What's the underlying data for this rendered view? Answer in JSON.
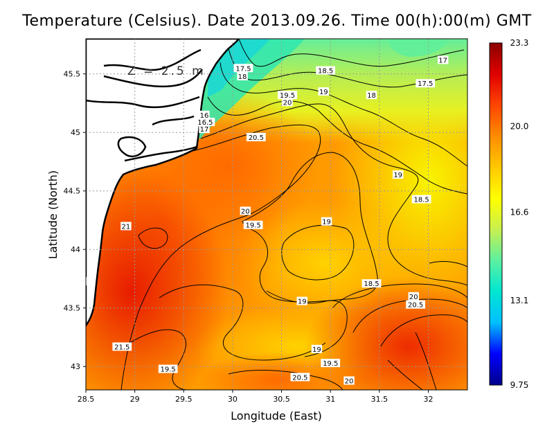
{
  "title": "Temperature (Celsius). Date 2013.09.26. Time 00(h):00(m) GMT",
  "depth_label": "Z = 2.5 m",
  "axes": {
    "xlabel": "Longitude (East)",
    "ylabel": "Latitude (North)",
    "xlim": [
      28.5,
      32.4
    ],
    "ylim": [
      42.8,
      45.8
    ],
    "xticks": [
      "28.5",
      "29",
      "29.5",
      "30",
      "30.5",
      "31",
      "31.5",
      "32"
    ],
    "yticks": [
      "43",
      "43.5",
      "44",
      "44.5",
      "45",
      "45.5"
    ],
    "grid": true
  },
  "colorbar": {
    "min": 9.75,
    "max": 23.3,
    "ticks": [
      "23.3",
      "20.0",
      "16.6",
      "13.1",
      "9.75"
    ],
    "colors": [
      "#00008b",
      "#0000ff",
      "#00bfff",
      "#00e6d2",
      "#5cf0a0",
      "#c8f050",
      "#ffff00",
      "#ffc800",
      "#ff8c00",
      "#ff4500",
      "#e00000",
      "#8b0000"
    ]
  },
  "contour_labels": [
    {
      "text": "17.5",
      "lon": 30.11,
      "lat": 45.55
    },
    {
      "text": "18",
      "lon": 30.1,
      "lat": 45.48
    },
    {
      "text": "18.5",
      "lon": 30.95,
      "lat": 45.53
    },
    {
      "text": "17",
      "lon": 32.15,
      "lat": 45.62
    },
    {
      "text": "17.5",
      "lon": 31.97,
      "lat": 45.42
    },
    {
      "text": "18",
      "lon": 31.42,
      "lat": 45.32
    },
    {
      "text": "19.5",
      "lon": 30.56,
      "lat": 45.32
    },
    {
      "text": "19",
      "lon": 30.93,
      "lat": 45.35
    },
    {
      "text": "20",
      "lon": 30.56,
      "lat": 45.26
    },
    {
      "text": "16",
      "lon": 29.71,
      "lat": 45.15
    },
    {
      "text": "16.5",
      "lon": 29.72,
      "lat": 45.09
    },
    {
      "text": "17",
      "lon": 29.71,
      "lat": 45.03
    },
    {
      "text": "20.5",
      "lon": 30.24,
      "lat": 44.96
    },
    {
      "text": "19",
      "lon": 31.69,
      "lat": 44.64
    },
    {
      "text": "18.5",
      "lon": 31.93,
      "lat": 44.43
    },
    {
      "text": "20",
      "lon": 30.13,
      "lat": 44.33
    },
    {
      "text": "19.5",
      "lon": 30.21,
      "lat": 44.21
    },
    {
      "text": "19",
      "lon": 30.96,
      "lat": 44.24
    },
    {
      "text": "21",
      "lon": 28.91,
      "lat": 44.2
    },
    {
      "text": "18.5",
      "lon": 31.42,
      "lat": 43.71
    },
    {
      "text": "20",
      "lon": 31.85,
      "lat": 43.6
    },
    {
      "text": "20.5",
      "lon": 31.87,
      "lat": 43.53
    },
    {
      "text": "19",
      "lon": 30.71,
      "lat": 43.56
    },
    {
      "text": "21.5",
      "lon": 28.87,
      "lat": 43.17
    },
    {
      "text": "19",
      "lon": 30.86,
      "lat": 43.15
    },
    {
      "text": "19.5",
      "lon": 31.0,
      "lat": 43.03
    },
    {
      "text": "19.5",
      "lon": 29.34,
      "lat": 42.98
    },
    {
      "text": "20.5",
      "lon": 30.69,
      "lat": 42.91
    },
    {
      "text": "20",
      "lon": 31.19,
      "lat": 42.88
    }
  ]
}
